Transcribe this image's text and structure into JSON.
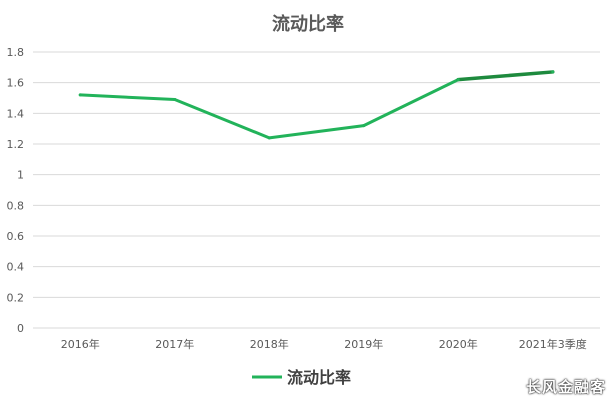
{
  "chart_data": {
    "type": "line",
    "title": "流动比率",
    "categories": [
      "2016年",
      "2017年",
      "2018年",
      "2019年",
      "2020年",
      "2021年3季度"
    ],
    "series": [
      {
        "name": "流动比率",
        "values": [
          1.52,
          1.49,
          1.24,
          1.32,
          1.62,
          1.67
        ],
        "color": "#22B35A",
        "highlight_color": "#1E8A3E"
      }
    ],
    "ylim": [
      0,
      1.8
    ],
    "yticks": [
      "0",
      "0.2",
      "0.4",
      "0.6",
      "0.8",
      "1",
      "1.2",
      "1.4",
      "1.6",
      "1.8"
    ],
    "grid": true,
    "legend_position": "bottom"
  },
  "watermark": "长风金融客"
}
